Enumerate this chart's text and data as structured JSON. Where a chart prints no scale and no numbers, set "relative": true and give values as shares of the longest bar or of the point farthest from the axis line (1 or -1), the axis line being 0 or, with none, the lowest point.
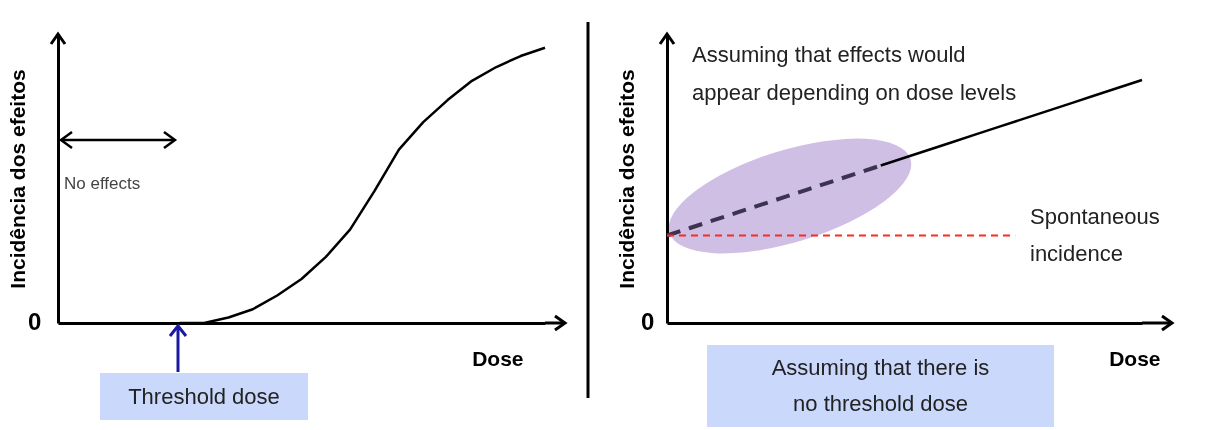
{
  "chart_data": [
    {
      "type": "line",
      "relative": true,
      "xlabel": "Dose",
      "ylabel": "Incidência dos efeitos",
      "annotations": [
        "0",
        "No effects",
        "Threshold dose"
      ],
      "categories": [
        null,
        null,
        null,
        null,
        null,
        null,
        null,
        null,
        null,
        null,
        null,
        null,
        null,
        null,
        null,
        null,
        null,
        null,
        null,
        null,
        null
      ],
      "series": [
        {
          "color": "#000000",
          "values": [
            null,
            null,
            null,
            null,
            null,
            0,
            0,
            0.02,
            0.05,
            0.1,
            0.16,
            0.24,
            0.34,
            0.48,
            0.63,
            0.73,
            0.81,
            0.88,
            0.93,
            0.97,
            1
          ]
        }
      ]
    },
    {
      "type": "line",
      "relative": true,
      "xlabel": "Dose",
      "ylabel": "Incidência dos efeitos",
      "annotations": [
        "0",
        "Assuming that effects would appear depending on dose levels",
        "Assuming that there is no threshold dose"
      ],
      "categories": [
        null,
        null,
        null,
        null,
        null,
        null,
        null,
        null,
        null,
        null,
        null,
        null,
        null,
        null,
        null,
        null,
        null,
        null,
        null,
        null,
        null
      ],
      "series": [
        {
          "color": "#3b3350",
          "line_style": "dashed",
          "values": [
            0.36,
            0.392,
            0.424,
            0.456,
            0.488,
            0.52,
            0.552,
            0.584,
            0.616,
            0.648,
            null,
            null,
            null,
            null,
            null,
            null,
            null,
            null,
            null,
            null,
            null
          ]
        },
        {
          "color": "#000000",
          "line_style": "solid",
          "values": [
            null,
            null,
            null,
            null,
            null,
            null,
            null,
            null,
            null,
            0.648,
            0.68,
            0.712,
            0.744,
            0.776,
            0.808,
            0.84,
            0.872,
            0.904,
            0.936,
            0.968,
            1
          ]
        }
      ],
      "ref_lines": [
        {
          "axis": "y",
          "value": 0.36,
          "label": "Spontaneous incidence",
          "color": "#ff2a1a",
          "line_style": "dashed"
        }
      ]
    }
  ]
}
